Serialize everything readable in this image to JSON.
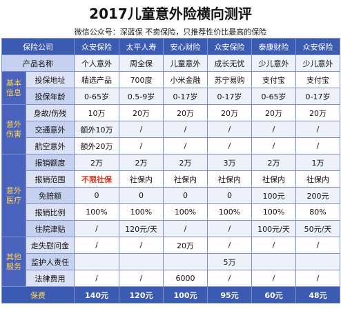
{
  "title": "2017儿童意外险横向测评",
  "subtitle": "微信公众号：深蓝保      不卖保险，只推荐性价比最高的保险",
  "header": {
    "company_label": "保险公司",
    "product_label": "产品名称",
    "companies": [
      "众安保险",
      "太平人寿",
      "安心财险",
      "众安保险",
      "泰康财险",
      "众安保险"
    ],
    "products": [
      "个人意外",
      "周全保",
      "儿童意外",
      "成长无忧",
      "少儿意外",
      "少儿意外"
    ]
  },
  "categories": {
    "basic": "基本\n信息",
    "accident": "意外\n伤害",
    "medical": "意外\n医疗",
    "other": "其他\n服务"
  },
  "rows": {
    "channel": {
      "label": "投保地址",
      "values": [
        "精选产品",
        "700度",
        "小米金融",
        "苏宁易购",
        "支付宝",
        "支付宝"
      ]
    },
    "age": {
      "label": "投保年龄",
      "values": [
        "0-65岁",
        "0.5-9岁",
        "0-17岁",
        "0-17岁",
        "0-65岁",
        "0-17岁"
      ]
    },
    "death": {
      "label": "身故/伤残",
      "values": [
        "10万",
        "20万",
        "20万",
        "20万",
        "20万",
        "20万"
      ]
    },
    "traffic": {
      "label": "交通意外",
      "values": [
        "额外10万",
        "/",
        "/",
        "/",
        "/",
        "/"
      ]
    },
    "air": {
      "label": "航空意外",
      "values": [
        "额外20万",
        "/",
        "/",
        "/",
        "/",
        "/"
      ]
    },
    "limit": {
      "label": "报销额度",
      "values": [
        "2万",
        "2万",
        "2万",
        "3万",
        "2万",
        "1万"
      ]
    },
    "scope": {
      "label": "报销范围",
      "values": [
        "不限社保",
        "社保内",
        "社保内",
        "社保内",
        "社保内",
        "社保内"
      ]
    },
    "deductible": {
      "label": "免赔额",
      "values": [
        "0",
        "0",
        "0",
        "0",
        "100元",
        "200元"
      ]
    },
    "ratio": {
      "label": "报销比例",
      "values": [
        "100%",
        "100%",
        "100%",
        "100%",
        "100%",
        "80%"
      ]
    },
    "hospital": {
      "label": "住院津贴",
      "values": [
        "/",
        "120元/天",
        "/",
        "/",
        "100元/天",
        "50元/天"
      ]
    },
    "missing": {
      "label": "走失慰问金",
      "values": [
        "/",
        "/",
        "20万",
        "/",
        "/",
        "/"
      ]
    },
    "guardian": {
      "label": "监护人责任",
      "values": [
        "",
        "",
        "",
        "5万",
        "",
        ""
      ]
    },
    "legal": {
      "label": "法律费用",
      "values": [
        "/",
        "/",
        "6000",
        "/",
        "/",
        "/"
      ]
    }
  },
  "premium": {
    "label": "保费",
    "values": [
      "140元",
      "120元",
      "100元",
      "95元",
      "60元",
      "48元"
    ]
  },
  "colors": {
    "header_blue": "#3b5bb3",
    "category_text": "#ffd34d",
    "label_bg": "#dbe2f5",
    "highlight_red": "#e0321c"
  }
}
